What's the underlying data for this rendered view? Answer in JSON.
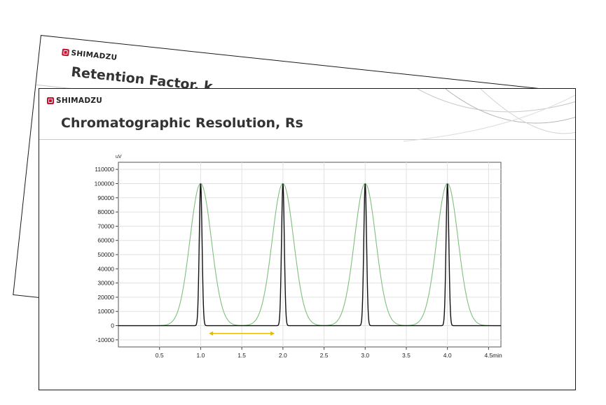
{
  "back_slide": {
    "logo_text": "SHIMADZU",
    "title": "Retention Factor, k"
  },
  "front_slide": {
    "logo_text": "SHIMADZU",
    "title": "Chromatographic Resolution, Rs"
  },
  "colors": {
    "logo_red": "#c8102e",
    "narrow_peaks": "#111111",
    "broad_peaks": "#7fbf7f",
    "arrow": "#e6b800",
    "grid": "#e2e2e2"
  },
  "chart_data": {
    "type": "line",
    "y_unit": "uV",
    "x_unit": "min",
    "xlim": [
      0,
      4.65
    ],
    "ylim": [
      -15000,
      115000
    ],
    "x_ticks": [
      "0.5",
      "1.0",
      "1.5",
      "2.0",
      "2.5",
      "3.0",
      "3.5",
      "4.0",
      "4.5"
    ],
    "y_ticks": [
      "110000",
      "100000",
      "90000",
      "80000",
      "70000",
      "60000",
      "50000",
      "40000",
      "30000",
      "20000",
      "10000",
      "0",
      "-10000"
    ],
    "grid": true,
    "series": [
      {
        "peaks_at": [
          1.0,
          2.0,
          3.0,
          4.0
        ],
        "height": 100000,
        "sigma": 0.017,
        "color": "#111111"
      },
      {
        "peaks_at": [
          1.0,
          2.0,
          3.0,
          4.0
        ],
        "height": 100000,
        "sigma": 0.13,
        "color": "#7fbf7f"
      }
    ],
    "annotation": {
      "type": "double-arrow",
      "x_from": 1.1,
      "x_to": 1.9,
      "y": -5500,
      "color": "#e6b800"
    }
  }
}
